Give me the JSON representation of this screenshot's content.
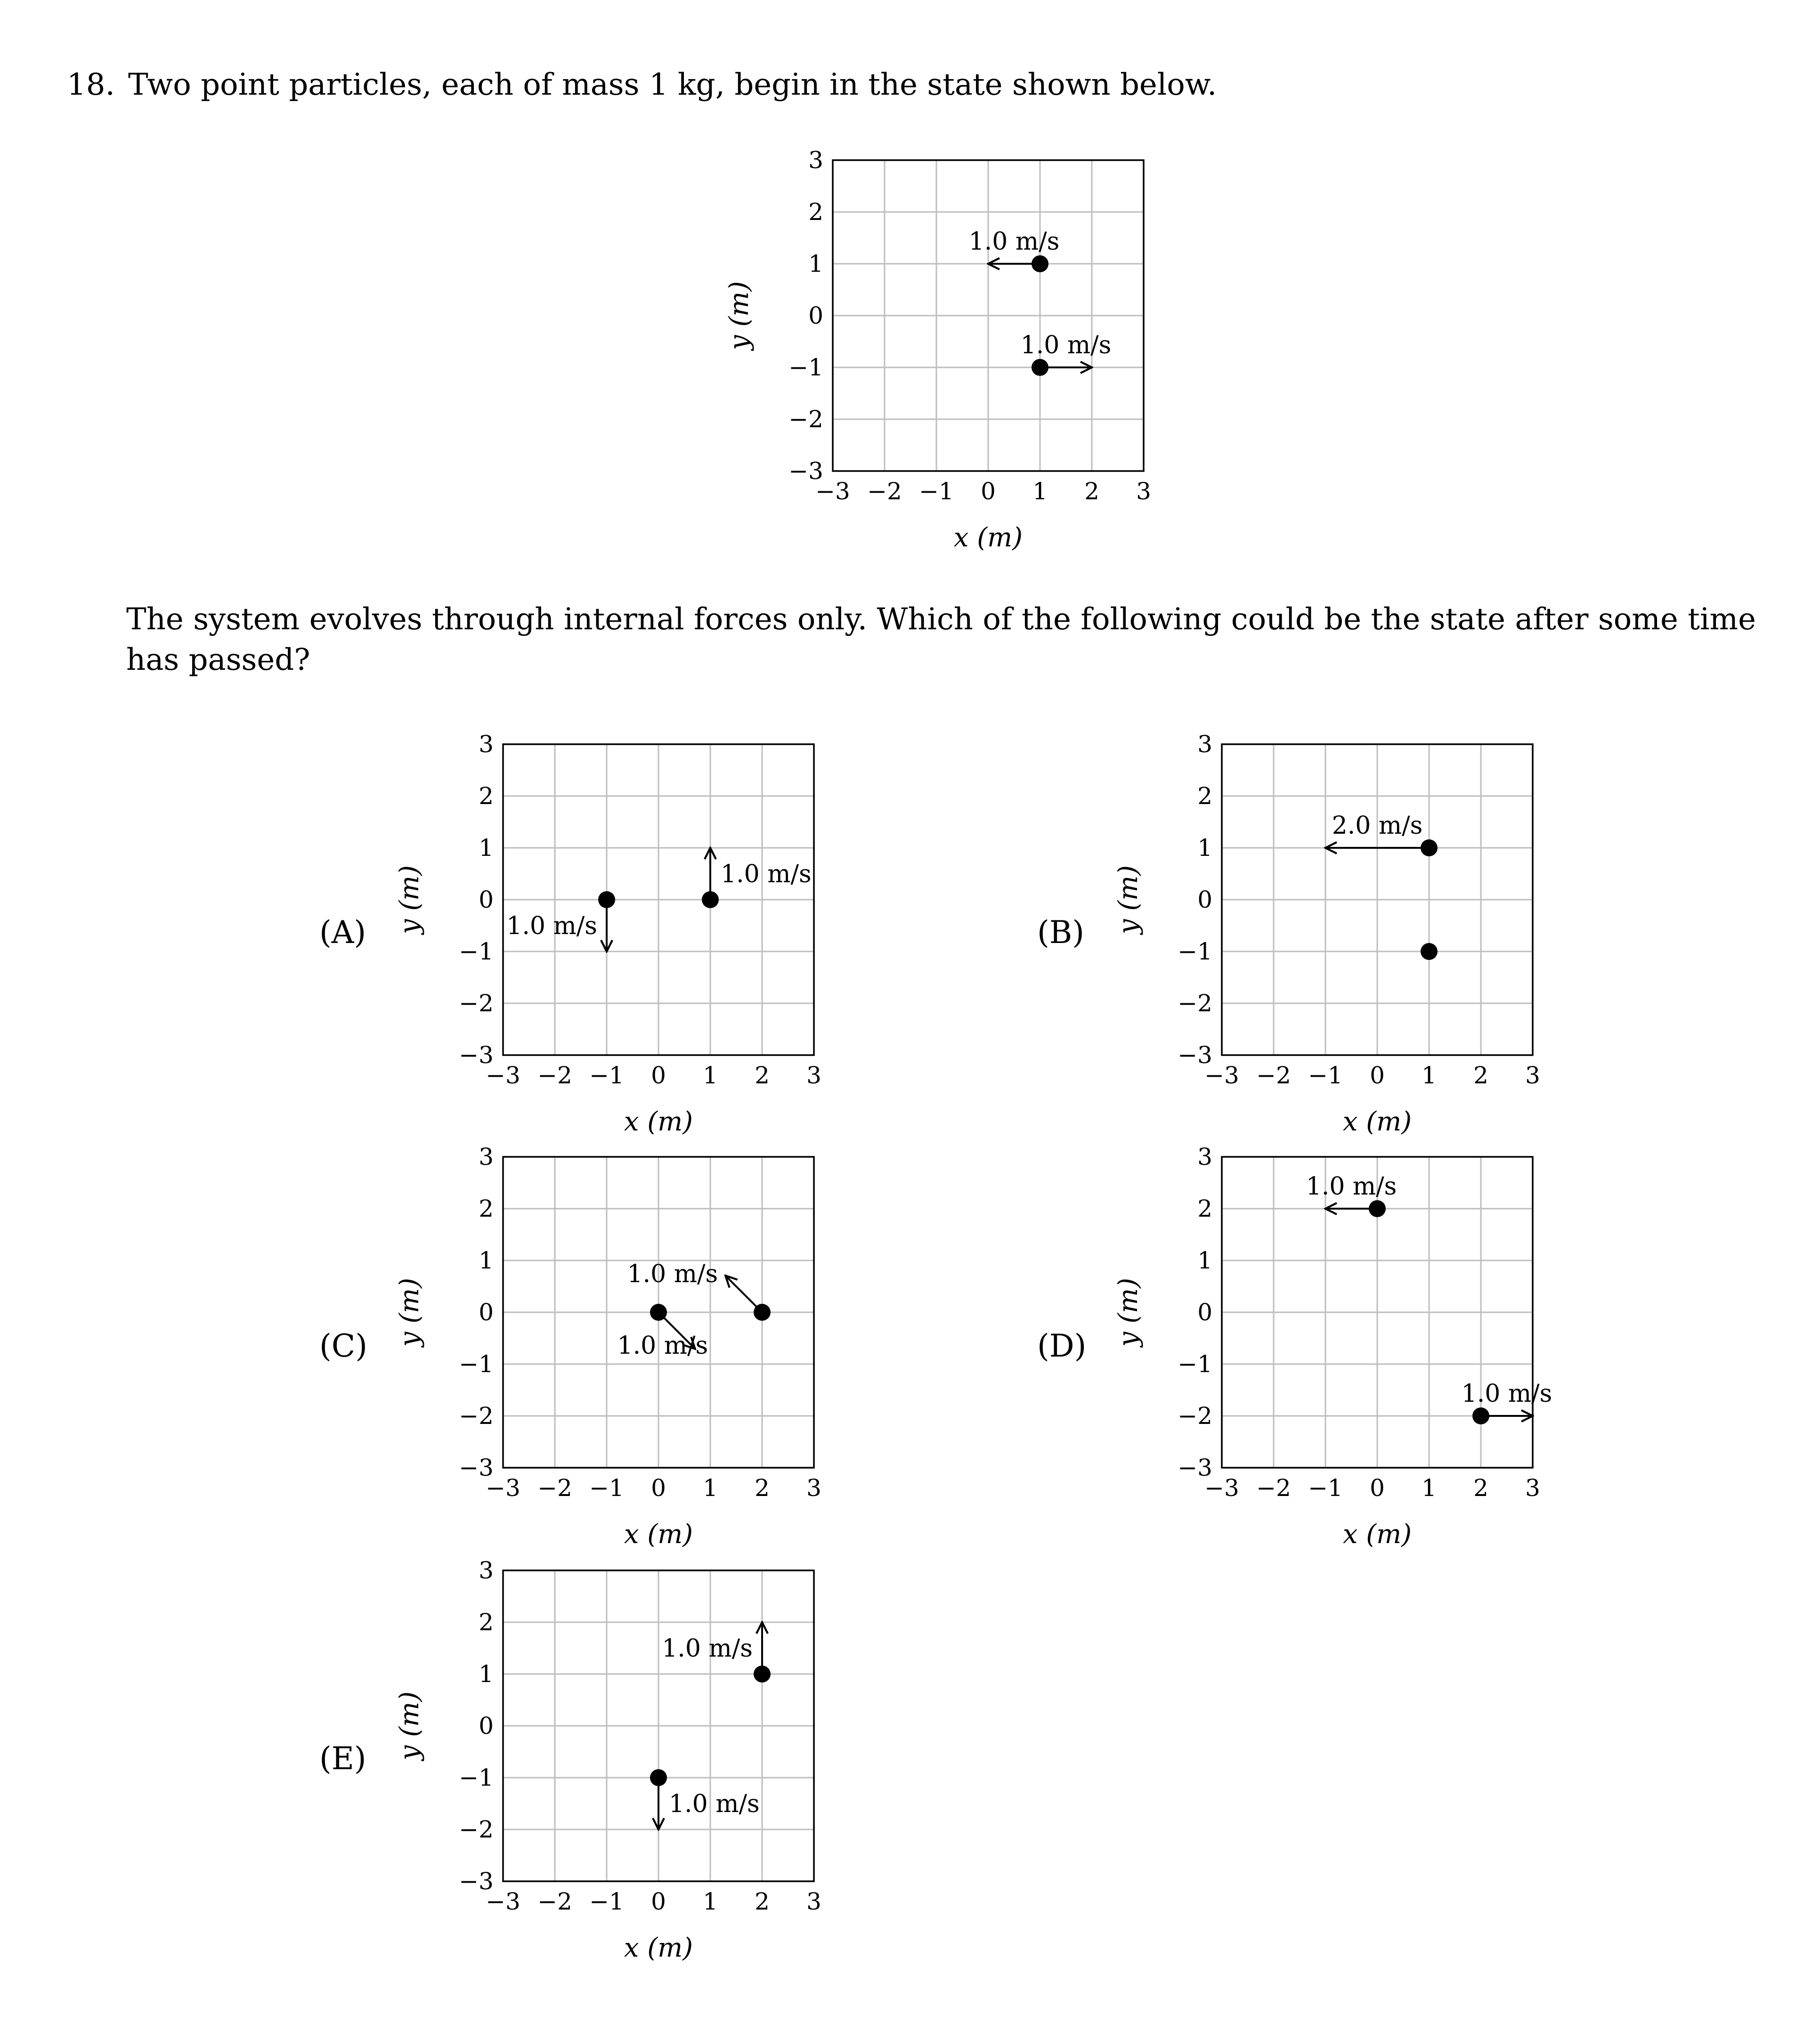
{
  "question": {
    "number": "18.",
    "stem": "Two point particles, each of mass 1 kg, begin in the state shown below.",
    "prompt": "The system evolves through internal forces only. Which of the following could be the state after some time has passed?"
  },
  "axis_titles": {
    "x": "x (m)",
    "y": "y (m)"
  },
  "ticks": [
    "−3",
    "−2",
    "−1",
    "0",
    "1",
    "2",
    "3"
  ],
  "chart_data": [
    {
      "id": "initial",
      "type": "scatter",
      "label": "",
      "xlim": [
        -3,
        3
      ],
      "ylim": [
        -3,
        3
      ],
      "grid": true,
      "particles": [
        {
          "x": 1,
          "y": 1,
          "vx": -1,
          "vy": 0,
          "speed_label": "1.0 m/s",
          "label_anchor": "above"
        },
        {
          "x": 1,
          "y": -1,
          "vx": 1,
          "vy": 0,
          "speed_label": "1.0 m/s",
          "label_anchor": "above"
        }
      ]
    },
    {
      "id": "A",
      "type": "scatter",
      "label": "(A)",
      "xlim": [
        -3,
        3
      ],
      "ylim": [
        -3,
        3
      ],
      "grid": true,
      "particles": [
        {
          "x": -1,
          "y": 0,
          "vx": 0,
          "vy": -1,
          "speed_label": "1.0 m/s",
          "label_anchor": "left"
        },
        {
          "x": 1,
          "y": 0,
          "vx": 0,
          "vy": 1,
          "speed_label": "1.0 m/s",
          "label_anchor": "right"
        }
      ]
    },
    {
      "id": "B",
      "type": "scatter",
      "label": "(B)",
      "xlim": [
        -3,
        3
      ],
      "ylim": [
        -3,
        3
      ],
      "grid": true,
      "particles": [
        {
          "x": 1,
          "y": 1,
          "vx": -2,
          "vy": 0,
          "speed_label": "2.0 m/s",
          "label_anchor": "above"
        },
        {
          "x": 1,
          "y": -1,
          "vx": 0,
          "vy": 0,
          "speed_label": "",
          "label_anchor": "none"
        }
      ]
    },
    {
      "id": "C",
      "type": "scatter",
      "label": "(C)",
      "xlim": [
        -3,
        3
      ],
      "ylim": [
        -3,
        3
      ],
      "grid": true,
      "particles": [
        {
          "x": 0,
          "y": 0,
          "vx": 0.707,
          "vy": -0.707,
          "speed_label": "1.0 m/s",
          "label_anchor": "below"
        },
        {
          "x": 2,
          "y": 0,
          "vx": -0.707,
          "vy": 0.707,
          "speed_label": "1.0 m/s",
          "label_anchor": "left"
        }
      ]
    },
    {
      "id": "D",
      "type": "scatter",
      "label": "(D)",
      "xlim": [
        -3,
        3
      ],
      "ylim": [
        -3,
        3
      ],
      "grid": true,
      "particles": [
        {
          "x": 0,
          "y": 2,
          "vx": -1,
          "vy": 0,
          "speed_label": "1.0 m/s",
          "label_anchor": "above"
        },
        {
          "x": 2,
          "y": -2,
          "vx": 1,
          "vy": 0,
          "speed_label": "1.0 m/s",
          "label_anchor": "above"
        }
      ]
    },
    {
      "id": "E",
      "type": "scatter",
      "label": "(E)",
      "xlim": [
        -3,
        3
      ],
      "ylim": [
        -3,
        3
      ],
      "grid": true,
      "particles": [
        {
          "x": 2,
          "y": 1,
          "vx": 0,
          "vy": 1,
          "speed_label": "1.0 m/s",
          "label_anchor": "left"
        },
        {
          "x": 0,
          "y": -1,
          "vx": 0,
          "vy": -1,
          "speed_label": "1.0 m/s",
          "label_anchor": "right"
        }
      ]
    }
  ]
}
